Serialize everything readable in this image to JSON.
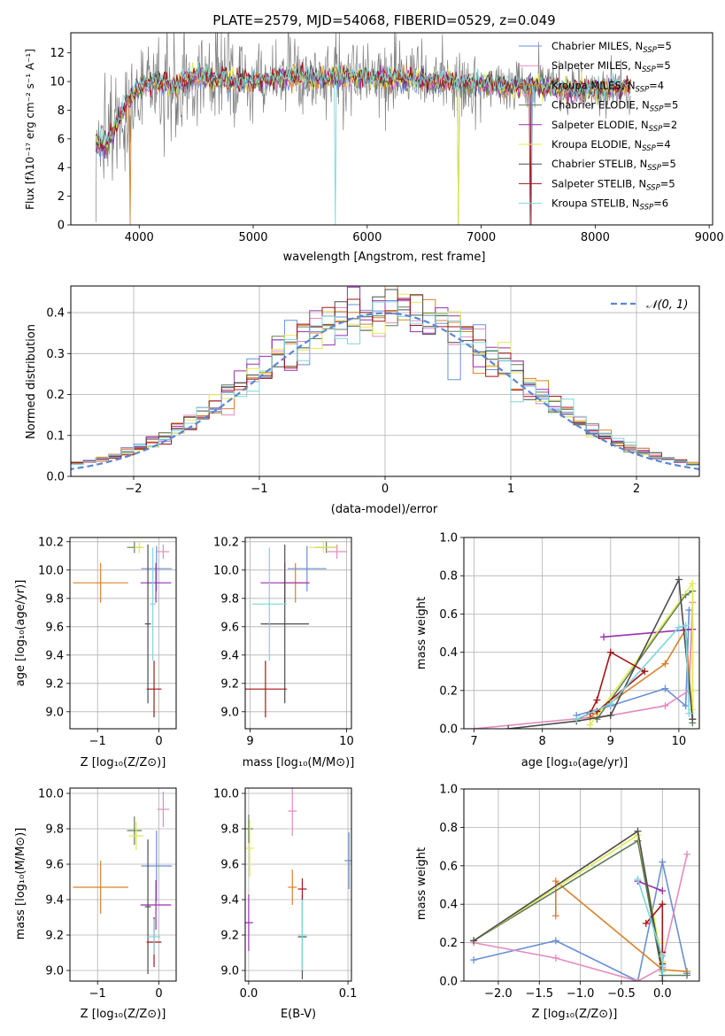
{
  "chart_data": [
    {
      "id": "spectrum",
      "type": "line",
      "title": "PLATE=2579, MJD=54068, FIBERID=0529, z=0.049",
      "xlabel": "wavelength [Angstrom, rest frame]",
      "ylabel": "Flux [fλ10⁻¹⁷ erg cm⁻² s⁻¹ A⁻¹]",
      "xlim": [
        3400,
        9030
      ],
      "ylim": [
        0,
        13.4
      ],
      "xticks": [
        "4000",
        "5000",
        "6000",
        "7000",
        "8000",
        "9000"
      ],
      "yticks": [
        "0",
        "2",
        "4",
        "6",
        "8",
        "10",
        "12"
      ],
      "grid": false,
      "legend_position": "top-right",
      "continuum_x": [
        3620,
        3700,
        3800,
        3900,
        4000,
        4100,
        4200,
        4300,
        4500,
        4700,
        5000,
        5300,
        5600,
        6000,
        6400,
        6800,
        7200,
        7500,
        7800,
        8100,
        8300
      ],
      "continuum_y": [
        5.8,
        5.4,
        7.0,
        8.6,
        9.6,
        9.9,
        9.9,
        9.7,
        10.4,
        10.1,
        10.0,
        10.3,
        10.2,
        10.3,
        10.1,
        10.0,
        9.6,
        9.7,
        9.3,
        9.5,
        9.6
      ],
      "spectrum_range": [
        3620,
        8310
      ],
      "series": [
        {
          "name": "Chabrier MILES, N_SSP=5",
          "color": "#6a8fd7"
        },
        {
          "name": "Salpeter MILES, N_SSP=5",
          "color": "#e38bbf"
        },
        {
          "name": "Kroupa MILES, N_SSP=4",
          "color": "#d8822a"
        },
        {
          "name": "Chabrier ELODIE, N_SSP=5",
          "color": "#5f7f57"
        },
        {
          "name": "Salpeter ELODIE, N_SSP=2",
          "color": "#9a2fb0"
        },
        {
          "name": "Kroupa ELODIE, N_SSP=4",
          "color": "#e2ea52"
        },
        {
          "name": "Chabrier STELIB, N_SSP=5",
          "color": "#4d4d4d"
        },
        {
          "name": "Salpeter STELIB, N_SSP=5",
          "color": "#a51518"
        },
        {
          "name": "Kroupa STELIB, N_SSP=6",
          "color": "#7ed6dc"
        }
      ],
      "data_color": "#808080"
    },
    {
      "id": "residuals",
      "type": "line",
      "xlabel": "(data-model)/error",
      "ylabel": "Normed distribution",
      "xlim": [
        -2.5,
        2.5
      ],
      "ylim": [
        0,
        0.465
      ],
      "xticks": [
        "−2",
        "−1",
        "0",
        "1",
        "2"
      ],
      "yticks": [
        "0.0",
        "0.1",
        "0.2",
        "0.3",
        "0.4"
      ],
      "grid": true,
      "legend_label": "𝒩(0, 1)",
      "legend_position": "top-right",
      "bin_width": 0.1
    },
    {
      "id": "z-age",
      "type": "scatter",
      "xlabel": "Z [log₁₀(Z/Z⊙)]",
      "ylabel": "age  [log₁₀(age/yr)]",
      "xlim": [
        -1.45,
        0.28
      ],
      "ylim": [
        8.88,
        10.23
      ],
      "xticks": [
        "−1",
        "0"
      ],
      "yticks": [
        "9.0",
        "9.2",
        "9.4",
        "9.6",
        "9.8",
        "10.0",
        "10.2"
      ],
      "grid": true,
      "points": [
        {
          "x": -0.04,
          "y": 10.01,
          "xerr": 0.25,
          "yerr": 0.16,
          "c": 0
        },
        {
          "x": 0.07,
          "y": 10.13,
          "xerr": 0.1,
          "yerr": 0.05,
          "c": 1
        },
        {
          "x": -0.95,
          "y": 9.91,
          "xerr": 0.45,
          "yerr": 0.14,
          "c": 2
        },
        {
          "x": -0.4,
          "y": 10.16,
          "xerr": 0.12,
          "yerr": 0.04,
          "c": 3
        },
        {
          "x": -0.05,
          "y": 9.91,
          "xerr": 0.25,
          "yerr": 0.14,
          "c": 4
        },
        {
          "x": -0.32,
          "y": 10.16,
          "xerr": 0.08,
          "yerr": 0.04,
          "c": 5
        },
        {
          "x": -0.18,
          "y": 9.62,
          "xerr": 0.05,
          "yerr": 0.56,
          "c": 6
        },
        {
          "x": -0.08,
          "y": 9.16,
          "xerr": 0.12,
          "yerr": 0.2,
          "c": 7
        },
        {
          "x": -0.1,
          "y": 9.76,
          "xerr": 0.05,
          "yerr": 0.4,
          "c": 8
        }
      ]
    },
    {
      "id": "mass-age",
      "type": "scatter",
      "xlabel": "mass [log₁₀(M/M⊙)]",
      "ylabel": "",
      "xlim": [
        8.95,
        10.05
      ],
      "ylim": [
        8.88,
        10.23
      ],
      "xticks": [
        "9",
        "10"
      ],
      "yticks": [
        "9.0",
        "9.2",
        "9.4",
        "9.6",
        "9.8",
        "10.0",
        "10.2"
      ],
      "grid": true,
      "points": [
        {
          "x": 9.59,
          "y": 10.01,
          "xerr": 0.2,
          "yerr": 0.16,
          "c": 0
        },
        {
          "x": 9.9,
          "y": 10.13,
          "xerr": 0.1,
          "yerr": 0.05,
          "c": 1
        },
        {
          "x": 9.47,
          "y": 9.91,
          "xerr": 0.15,
          "yerr": 0.14,
          "c": 2
        },
        {
          "x": 9.79,
          "y": 10.16,
          "xerr": 0.12,
          "yerr": 0.04,
          "c": 3
        },
        {
          "x": 9.36,
          "y": 9.91,
          "xerr": 0.25,
          "yerr": 0.14,
          "c": 4
        },
        {
          "x": 9.76,
          "y": 10.16,
          "xerr": 0.15,
          "yerr": 0.04,
          "c": 5
        },
        {
          "x": 9.36,
          "y": 9.62,
          "xerr": 0.25,
          "yerr": 0.56,
          "c": 6
        },
        {
          "x": 9.16,
          "y": 9.16,
          "xerr": 0.22,
          "yerr": 0.2,
          "c": 7
        },
        {
          "x": 9.2,
          "y": 9.76,
          "xerr": 0.18,
          "yerr": 0.4,
          "c": 8
        }
      ]
    },
    {
      "id": "age-weight",
      "type": "line",
      "xlabel": "age  [log₁₀(age/yr)]",
      "ylabel": "mass weight",
      "xlim": [
        6.85,
        10.3
      ],
      "ylim": [
        0,
        1.0
      ],
      "xticks": [
        "7",
        "8",
        "9",
        "10"
      ],
      "yticks": [
        "0.0",
        "0.2",
        "0.4",
        "0.6",
        "0.8",
        "1.0"
      ],
      "grid": true,
      "series": [
        {
          "c": 0,
          "x": [
            8.5,
            9.0,
            9.8,
            10.1,
            10.15
          ],
          "y": [
            0.07,
            0.12,
            0.21,
            0.12,
            0.62
          ]
        },
        {
          "c": 1,
          "x": [
            7.0,
            9.0,
            9.8,
            10.15,
            10.2
          ],
          "y": [
            0.0,
            0.07,
            0.12,
            0.2,
            0.66
          ]
        },
        {
          "c": 2,
          "x": [
            8.7,
            9.8,
            10.1,
            10.2
          ],
          "y": [
            0.06,
            0.34,
            0.52,
            0.05
          ]
        },
        {
          "c": 3,
          "x": [
            8.8,
            10.1,
            10.2,
            10.2
          ],
          "y": [
            0.05,
            0.7,
            0.72,
            0.03
          ]
        },
        {
          "c": 4,
          "x": [
            8.9,
            10.2
          ],
          "y": [
            0.48,
            0.52
          ]
        },
        {
          "c": 5,
          "x": [
            8.7,
            10.2,
            10.2,
            10.2
          ],
          "y": [
            0.02,
            0.76,
            0.2,
            0.1
          ]
        },
        {
          "c": 6,
          "x": [
            7.5,
            8.5,
            9.0,
            10.0,
            10.2
          ],
          "y": [
            0.0,
            0.04,
            0.07,
            0.78,
            0.05
          ]
        },
        {
          "c": 7,
          "x": [
            8.5,
            8.7,
            8.8,
            9.0,
            9.5,
            8.8
          ],
          "y": [
            0.05,
            0.08,
            0.15,
            0.4,
            0.3,
            0.09
          ]
        },
        {
          "c": 8,
          "x": [
            8.5,
            9.0,
            10.0,
            10.1,
            10.15
          ],
          "y": [
            0.05,
            0.13,
            0.53,
            0.54,
            0.08
          ]
        }
      ]
    },
    {
      "id": "z-mass",
      "type": "scatter",
      "xlabel": "Z [log₁₀(Z/Z⊙)]",
      "ylabel": "mass [log₁₀(M/M⊙)]",
      "xlim": [
        -1.45,
        0.28
      ],
      "ylim": [
        8.94,
        10.03
      ],
      "xticks": [
        "−1",
        "0"
      ],
      "yticks": [
        "9.0",
        "9.2",
        "9.4",
        "9.6",
        "9.8",
        "10.0"
      ],
      "grid": true,
      "points": [
        {
          "x": -0.04,
          "y": 9.59,
          "xerr": 0.25,
          "yerr": 0.2,
          "c": 0
        },
        {
          "x": 0.07,
          "y": 9.91,
          "xerr": 0.1,
          "yerr": 0.1,
          "c": 1
        },
        {
          "x": -0.95,
          "y": 9.47,
          "xerr": 0.45,
          "yerr": 0.15,
          "c": 2
        },
        {
          "x": -0.4,
          "y": 9.79,
          "xerr": 0.12,
          "yerr": 0.08,
          "c": 3
        },
        {
          "x": -0.05,
          "y": 9.37,
          "xerr": 0.25,
          "yerr": 0.14,
          "c": 4
        },
        {
          "x": -0.37,
          "y": 9.76,
          "xerr": 0.12,
          "yerr": 0.08,
          "c": 5
        },
        {
          "x": -0.18,
          "y": 9.36,
          "xerr": 0.05,
          "yerr": 0.38,
          "c": 6
        },
        {
          "x": -0.08,
          "y": 9.16,
          "xerr": 0.12,
          "yerr": 0.14,
          "c": 7
        },
        {
          "x": -0.08,
          "y": 9.19,
          "xerr": 0.1,
          "yerr": 0.1,
          "c": 8
        }
      ]
    },
    {
      "id": "ebv-mass",
      "type": "scatter",
      "xlabel": "E(B-V)",
      "ylabel": "",
      "xlim": [
        -0.0035,
        0.1035
      ],
      "ylim": [
        8.94,
        10.03
      ],
      "xticks": [
        "0.0",
        "0.1"
      ],
      "yticks": [
        "9.0",
        "9.2",
        "9.4",
        "9.6",
        "9.8",
        "10.0"
      ],
      "grid": true,
      "points": [
        {
          "x": 0.101,
          "y": 9.62,
          "yerr": 0.16,
          "c": 0
        },
        {
          "x": 0.044,
          "y": 9.9,
          "yerr": 0.14,
          "c": 1
        },
        {
          "x": 0.044,
          "y": 9.47,
          "yerr": 0.1,
          "c": 2
        },
        {
          "x": 0.0,
          "y": 9.8,
          "yerr": 0.08,
          "c": 3
        },
        {
          "x": 0.0,
          "y": 9.27,
          "yerr": 0.16,
          "c": 4
        },
        {
          "x": 0.001,
          "y": 9.69,
          "yerr": 0.16,
          "c": 5
        },
        {
          "x": 0.054,
          "y": 9.19,
          "yerr": 0.24,
          "c": 6
        },
        {
          "x": 0.054,
          "y": 9.46,
          "yerr": 0.06,
          "c": 7
        },
        {
          "x": 0.054,
          "y": 9.2,
          "yerr": 0.2,
          "c": 8
        }
      ]
    },
    {
      "id": "z-weight",
      "type": "line",
      "xlabel": "Z [log₁₀(Z/Z⊙)]",
      "ylabel": "mass weight",
      "xlim": [
        -2.42,
        0.45
      ],
      "ylim": [
        0,
        1.0
      ],
      "xticks": [
        "−2.0",
        "−1.5",
        "−1.0",
        "−0.5",
        "0.0"
      ],
      "yticks": [
        "0.0",
        "0.2",
        "0.4",
        "0.6",
        "0.8",
        "1.0"
      ],
      "grid": true,
      "series": [
        {
          "c": 0,
          "x": [
            -2.3,
            -1.3,
            -0.3,
            0.0,
            0.3
          ],
          "y": [
            0.11,
            0.21,
            0.0,
            0.62,
            0.04
          ]
        },
        {
          "c": 1,
          "x": [
            -2.3,
            -1.3,
            -0.3,
            0.0,
            0.0,
            0.3
          ],
          "y": [
            0.2,
            0.12,
            0.0,
            0.07,
            0.1,
            0.66
          ]
        },
        {
          "c": 2,
          "x": [
            -1.3,
            -1.3,
            0.0,
            0.3
          ],
          "y": [
            0.34,
            0.52,
            0.06,
            0.05
          ]
        },
        {
          "c": 3,
          "x": [
            -2.3,
            -0.3,
            0.0,
            0.3
          ],
          "y": [
            0.21,
            0.73,
            0.03,
            0.03
          ]
        },
        {
          "c": 4,
          "x": [
            -0.3,
            0.0
          ],
          "y": [
            0.52,
            0.47
          ]
        },
        {
          "c": 5,
          "x": [
            -2.3,
            -0.3,
            0.0,
            0.0
          ],
          "y": [
            0.21,
            0.76,
            0.1,
            0.2
          ]
        },
        {
          "c": 6,
          "x": [
            -2.3,
            -0.3,
            0.0,
            0.0
          ],
          "y": [
            0.21,
            0.78,
            0.05,
            0.0
          ]
        },
        {
          "c": 7,
          "x": [
            -0.2,
            0.0,
            0.0,
            0.0
          ],
          "y": [
            0.3,
            0.4,
            0.09,
            0.15
          ]
        },
        {
          "c": 8,
          "x": [
            -0.3,
            0.0,
            0.0,
            0.0
          ],
          "y": [
            0.53,
            0.13,
            0.05,
            0.08
          ]
        }
      ]
    }
  ]
}
